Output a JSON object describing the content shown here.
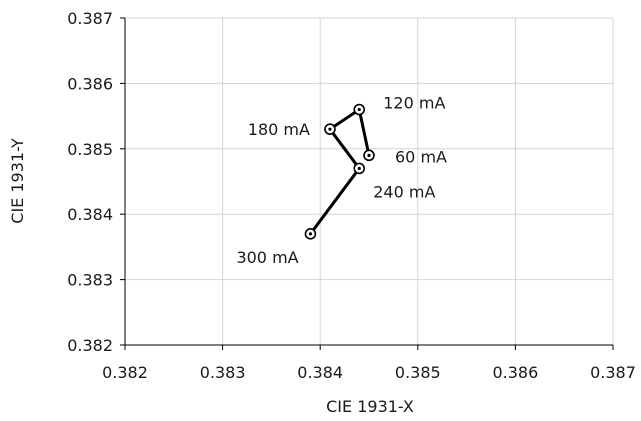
{
  "chart_data": {
    "type": "line",
    "title": "",
    "xlabel": "CIE 1931-X",
    "ylabel": "CIE 1931-Y",
    "xlim": [
      0.382,
      0.387
    ],
    "ylim": [
      0.382,
      0.387
    ],
    "x_ticks": [
      "0.382",
      "0.383",
      "0.384",
      "0.385",
      "0.386",
      "0.387"
    ],
    "y_ticks": [
      "0.382",
      "0.383",
      "0.384",
      "0.385",
      "0.386",
      "0.387"
    ],
    "grid": true,
    "legend": "none",
    "series": [
      {
        "points": [
          {
            "label": "60 mA",
            "x": 0.3845,
            "y": 0.3849
          },
          {
            "label": "120 mA",
            "x": 0.3844,
            "y": 0.3856
          },
          {
            "label": "180 mA",
            "x": 0.3841,
            "y": 0.3853
          },
          {
            "label": "240 mA",
            "x": 0.3844,
            "y": 0.3847
          },
          {
            "label": "300 mA",
            "x": 0.3839,
            "y": 0.3837
          }
        ]
      }
    ]
  }
}
